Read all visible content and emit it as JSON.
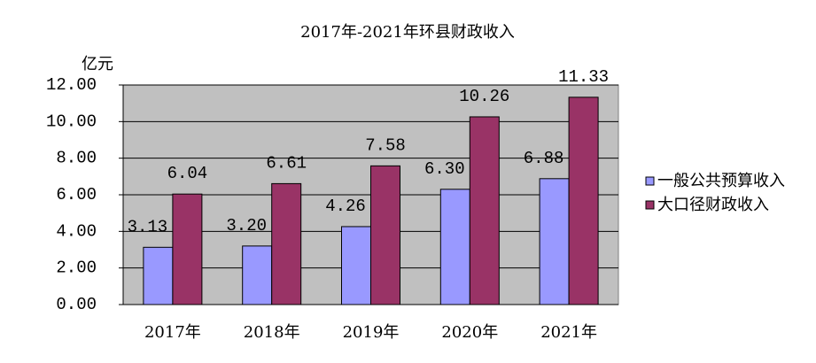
{
  "chart_data": {
    "type": "bar",
    "title": "2017年-2021年环县财政收入",
    "y_label": "亿元",
    "categories": [
      "2017年",
      "2018年",
      "2019年",
      "2020年",
      "2021年"
    ],
    "series": [
      {
        "name": "一般公共预算收入",
        "color": "#9999ff",
        "values": [
          3.13,
          3.2,
          4.26,
          6.3,
          6.88
        ],
        "value_labels": [
          "3.13",
          "3.20",
          "4.26",
          "6.30",
          "6.88"
        ]
      },
      {
        "name": "大口径财政收入",
        "color": "#993366",
        "values": [
          6.04,
          6.61,
          7.58,
          10.26,
          11.33
        ],
        "value_labels": [
          "6.04",
          "6.61",
          "7.58",
          "10.26",
          "11.33"
        ]
      }
    ],
    "ylim": [
      0,
      12
    ],
    "yticks": [
      {
        "value": 0,
        "label": "0.00"
      },
      {
        "value": 2,
        "label": "2.00"
      },
      {
        "value": 4,
        "label": "4.00"
      },
      {
        "value": 6,
        "label": "6.00"
      },
      {
        "value": 8,
        "label": "8.00"
      },
      {
        "value": 10,
        "label": "10.00"
      },
      {
        "value": 12,
        "label": "12.00"
      }
    ],
    "grid": true,
    "legend": "right",
    "plot_background": "#c0c0c0"
  }
}
